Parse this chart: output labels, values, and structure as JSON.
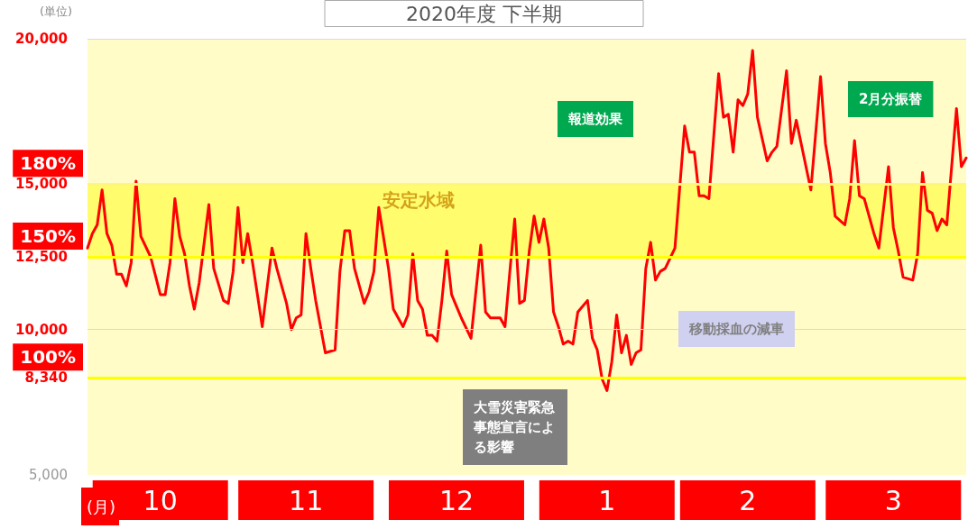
{
  "chart_data": {
    "type": "line",
    "title": "2020年度 下半期",
    "ylabel": "(単位)",
    "xlabel": "(月)",
    "xlim": [
      "2020-10-01",
      "2021-03-31"
    ],
    "xticks": [
      {
        "value": "2020-10-16",
        "label": "10"
      },
      {
        "value": "2020-11-15",
        "label": "11"
      },
      {
        "value": "2020-12-16",
        "label": "12"
      },
      {
        "value": "2021-01-16",
        "label": "1"
      },
      {
        "value": "2021-02-14",
        "label": "2"
      },
      {
        "value": "2021-03-16",
        "label": "3"
      }
    ],
    "ylim": [
      5000,
      20000
    ],
    "yticks": [
      {
        "value": 5000,
        "label": "5,000"
      },
      {
        "value": 8340,
        "label": "8,340"
      },
      {
        "value": 10000,
        "label": "10,000"
      },
      {
        "value": 12500,
        "label": "12,500"
      },
      {
        "value": 15000,
        "label": "15,000"
      },
      {
        "value": 20000,
        "label": "20,000"
      }
    ],
    "marker": "none",
    "series": [
      {
        "color": "#ff0000",
        "x": [
          "2020-10-01",
          "2020-10-02",
          "2020-10-03",
          "2020-10-04",
          "2020-10-05",
          "2020-10-06",
          "2020-10-07",
          "2020-10-08",
          "2020-10-09",
          "2020-10-10",
          "2020-10-11",
          "2020-10-12",
          "2020-10-14",
          "2020-10-16",
          "2020-10-17",
          "2020-10-18",
          "2020-10-19",
          "2020-10-20",
          "2020-10-21",
          "2020-10-22",
          "2020-10-23",
          "2020-10-24",
          "2020-10-26",
          "2020-10-27",
          "2020-10-29",
          "2020-10-30",
          "2020-10-31",
          "2020-11-01",
          "2020-11-02",
          "2020-11-03",
          "2020-11-04",
          "2020-11-06",
          "2020-11-08",
          "2020-11-09",
          "2020-11-11",
          "2020-11-12",
          "2020-11-13",
          "2020-11-14",
          "2020-11-15",
          "2020-11-16",
          "2020-11-17",
          "2020-11-19",
          "2020-11-21",
          "2020-11-22",
          "2020-11-23",
          "2020-11-24",
          "2020-11-25",
          "2020-11-27",
          "2020-11-28",
          "2020-11-29",
          "2020-11-30",
          "2020-12-02",
          "2020-12-03",
          "2020-12-05",
          "2020-12-06",
          "2020-12-07",
          "2020-12-08",
          "2020-12-09",
          "2020-12-10",
          "2020-12-11",
          "2020-12-12",
          "2020-12-13",
          "2020-12-14",
          "2020-12-15",
          "2020-12-16",
          "2020-12-17",
          "2020-12-19",
          "2020-12-21",
          "2020-12-22",
          "2020-12-23",
          "2020-12-25",
          "2020-12-26",
          "2020-12-27",
          "2020-12-28",
          "2020-12-29",
          "2020-12-30",
          "2020-12-31",
          "2021-01-01",
          "2021-01-02",
          "2021-01-03",
          "2021-01-04",
          "2021-01-05",
          "2021-01-06",
          "2021-01-07",
          "2021-01-08",
          "2021-01-09",
          "2021-01-10",
          "2021-01-12",
          "2021-01-13",
          "2021-01-14",
          "2021-01-15",
          "2021-01-16",
          "2021-01-17",
          "2021-01-18",
          "2021-01-19",
          "2021-01-20",
          "2021-01-21",
          "2021-01-22",
          "2021-01-23",
          "2021-01-24",
          "2021-01-25",
          "2021-01-26",
          "2021-01-27",
          "2021-01-28",
          "2021-01-30",
          "2021-01-31",
          "2021-02-01",
          "2021-02-02",
          "2021-02-03",
          "2021-02-04",
          "2021-02-05",
          "2021-02-06",
          "2021-02-08",
          "2021-02-09",
          "2021-02-10",
          "2021-02-11",
          "2021-02-12",
          "2021-02-13",
          "2021-02-14",
          "2021-02-15",
          "2021-02-16",
          "2021-02-18",
          "2021-02-19",
          "2021-02-20",
          "2021-02-22",
          "2021-02-23",
          "2021-02-24",
          "2021-02-27",
          "2021-03-01",
          "2021-03-02",
          "2021-03-03",
          "2021-03-04",
          "2021-03-06",
          "2021-03-07",
          "2021-03-08",
          "2021-03-09",
          "2021-03-10",
          "2021-03-12",
          "2021-03-13",
          "2021-03-15",
          "2021-03-16",
          "2021-03-17",
          "2021-03-18",
          "2021-03-20",
          "2021-03-21",
          "2021-03-22",
          "2021-03-23",
          "2021-03-24",
          "2021-03-25",
          "2021-03-26",
          "2021-03-27",
          "2021-03-29",
          "2021-03-30",
          "2021-03-31"
        ],
        "values": [
          12800,
          13300,
          13600,
          14800,
          13300,
          12900,
          11900,
          11900,
          11500,
          12300,
          15100,
          13200,
          12500,
          11200,
          11200,
          12300,
          14500,
          13200,
          12600,
          11500,
          10700,
          11600,
          14300,
          12100,
          11000,
          10900,
          12000,
          14200,
          12300,
          13300,
          12300,
          10100,
          12800,
          12100,
          10900,
          10000,
          10400,
          10500,
          13300,
          12100,
          11000,
          9200,
          9300,
          12000,
          13400,
          13400,
          12100,
          10900,
          11300,
          12000,
          14200,
          12100,
          10700,
          10100,
          10500,
          12600,
          11000,
          10700,
          9800,
          9800,
          9600,
          11000,
          12700,
          11200,
          10800,
          10400,
          9700,
          12900,
          10600,
          10400,
          10400,
          10100,
          12000,
          13800,
          10900,
          11000,
          12700,
          13900,
          13000,
          13800,
          12800,
          10600,
          10100,
          9500,
          9600,
          9500,
          10600,
          11000,
          9700,
          9300,
          8300,
          7900,
          8900,
          10500,
          9200,
          9800,
          8800,
          9200,
          9300,
          12100,
          13000,
          11700,
          12000,
          12100,
          12800,
          14900,
          17000,
          16100,
          16100,
          14600,
          14600,
          14500,
          18800,
          17300,
          17400,
          16100,
          17900,
          17700,
          18100,
          19600,
          17300,
          15800,
          16100,
          16300,
          18900,
          16400,
          17200,
          14800,
          18700,
          16400,
          15400,
          13900,
          13600,
          14500,
          16500,
          14600,
          14500,
          13300,
          12800,
          15600,
          13500,
          12700,
          11800,
          11700,
          12600,
          15400,
          14100,
          14000,
          13400,
          13800,
          13600,
          17600,
          15600,
          15900
        ]
      }
    ],
    "ref_lines": [
      {
        "axis": "y",
        "value": 15000,
        "color": "#fff67a"
      },
      {
        "axis": "y",
        "value": 12500,
        "color": "#ffff00"
      },
      {
        "axis": "y",
        "value": 8340,
        "color": "#ffff00"
      },
      {
        "axis": "y",
        "value": 10000,
        "color": "#d9d9d9"
      },
      {
        "axis": "y",
        "value": 20000,
        "color": "#d9d9d9"
      }
    ],
    "bands": [
      {
        "axis": "y",
        "from": 12500,
        "to": 15000,
        "label": "安定水域",
        "color": "#ffff00"
      }
    ],
    "annotations": [
      "報道効果",
      "2月分振替",
      "大雪災害緊急事態宣言による影響",
      "移動採血の減車",
      "180%",
      "150%",
      "100%"
    ]
  }
}
